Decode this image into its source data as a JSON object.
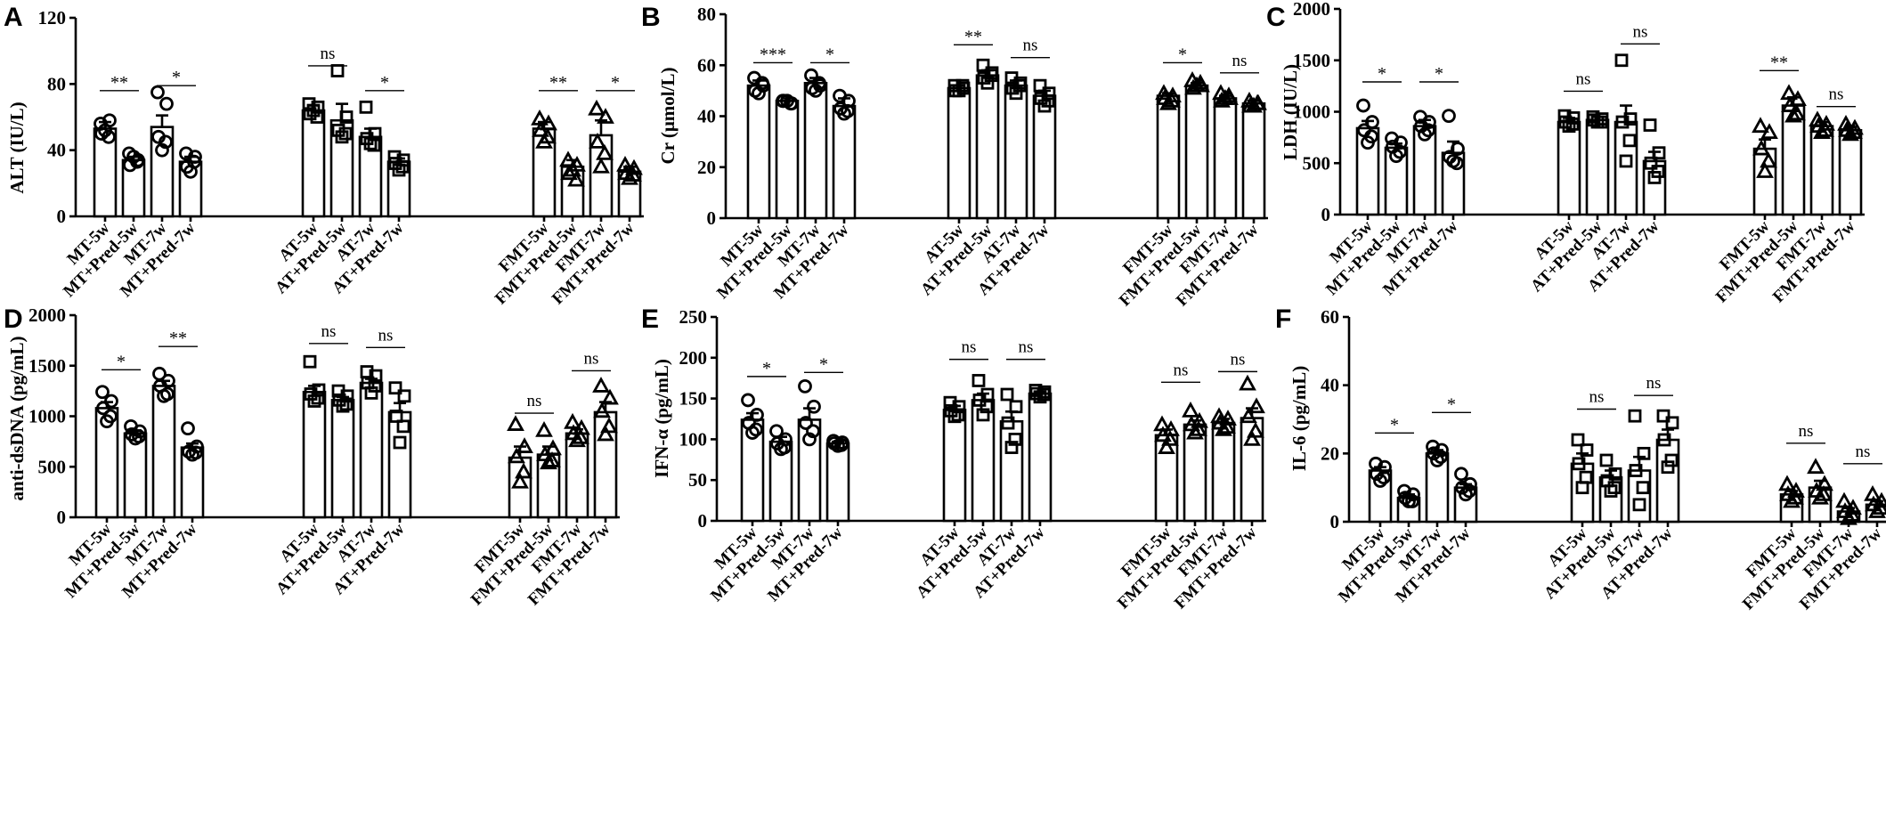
{
  "chart_data": [
    {
      "type": "bar",
      "panel": "A",
      "ylabel": "ALT (IU/L)",
      "ylim": [
        0,
        120
      ],
      "yticks": [
        "0",
        "40",
        "80",
        "120"
      ],
      "categories": [
        "MT-5w",
        "MT+Pred-5w",
        "MT-7w",
        "MT+Pred-7w",
        "AT-5w",
        "AT+Pred-5w",
        "AT-7w",
        "AT+Pred-7w",
        "FMT-5w",
        "FMT+Pred-5w",
        "FMT-7w",
        "FMT+Pred-7w"
      ],
      "groups": [
        4,
        4,
        4
      ],
      "markers": [
        "circle",
        "square",
        "triangle"
      ],
      "values": [
        53,
        34,
        54,
        33,
        64,
        58,
        48,
        33,
        53,
        30,
        49,
        27
      ],
      "errors": [
        4,
        2,
        7,
        3,
        3,
        10,
        5,
        2,
        4,
        4,
        9,
        3
      ],
      "points": [
        [
          56,
          58,
          50,
          48,
          52
        ],
        [
          38,
          34,
          31,
          33,
          36
        ],
        [
          75,
          68,
          48,
          45,
          40
        ],
        [
          38,
          36,
          30,
          33,
          27
        ],
        [
          68,
          66,
          62,
          60,
          64
        ],
        [
          88,
          60,
          52,
          50,
          48
        ],
        [
          66,
          50,
          47,
          43,
          44
        ],
        [
          36,
          34,
          32,
          30,
          28
        ],
        [
          59,
          56,
          52,
          48,
          45
        ],
        [
          34,
          31,
          26,
          22,
          28
        ],
        [
          65,
          60,
          45,
          38,
          30
        ],
        [
          31,
          29,
          26,
          25,
          23
        ]
      ],
      "significance": [
        {
          "from": 0,
          "to": 1,
          "label": "**",
          "y": 76
        },
        {
          "from": 2,
          "to": 3,
          "label": "*",
          "y": 79
        },
        {
          "from": 4,
          "to": 5,
          "label": "ns",
          "y": 91
        },
        {
          "from": 6,
          "to": 7,
          "label": "*",
          "y": 76
        },
        {
          "from": 8,
          "to": 9,
          "label": "**",
          "y": 76
        },
        {
          "from": 10,
          "to": 11,
          "label": "*",
          "y": 76
        }
      ]
    },
    {
      "type": "bar",
      "panel": "B",
      "ylabel": "Cr (μmol/L)",
      "ylim": [
        0,
        80
      ],
      "yticks": [
        "0",
        "20",
        "40",
        "60",
        "80"
      ],
      "categories": [
        "MT-5w",
        "MT+Pred-5w",
        "MT-7w",
        "MT+Pred-7w",
        "AT-5w",
        "AT+Pred-5w",
        "AT-7w",
        "AT+Pred-7w",
        "FMT-5w",
        "FMT+Pred-5w",
        "FMT-7w",
        "FMT+Pred-7w"
      ],
      "groups": [
        4,
        4,
        4
      ],
      "markers": [
        "circle",
        "square",
        "triangle"
      ],
      "values": [
        52,
        46,
        53,
        44,
        51,
        56,
        52,
        48,
        48,
        52,
        47,
        45
      ],
      "errors": [
        2,
        1,
        2,
        3,
        1,
        2,
        2,
        2,
        1,
        1,
        1,
        1
      ],
      "points": [
        [
          55,
          52,
          50,
          53,
          49
        ],
        [
          46,
          45,
          46,
          45,
          46
        ],
        [
          56,
          52,
          51,
          53,
          50
        ],
        [
          48,
          46,
          43,
          42,
          41
        ],
        [
          52,
          51,
          50,
          52,
          50
        ],
        [
          60,
          57,
          55,
          56,
          53
        ],
        [
          55,
          53,
          51,
          52,
          49
        ],
        [
          52,
          49,
          47,
          46,
          44
        ],
        [
          49,
          48,
          47,
          46,
          45
        ],
        [
          54,
          52,
          51,
          53,
          52
        ],
        [
          49,
          47,
          46,
          48,
          47
        ],
        [
          46,
          45,
          44,
          45,
          44
        ]
      ],
      "significance": [
        {
          "from": 0,
          "to": 1,
          "label": "***",
          "y": 61
        },
        {
          "from": 2,
          "to": 3,
          "label": "*",
          "y": 61
        },
        {
          "from": 4,
          "to": 5,
          "label": "**",
          "y": 68
        },
        {
          "from": 6,
          "to": 7,
          "label": "ns",
          "y": 63
        },
        {
          "from": 8,
          "to": 9,
          "label": "*",
          "y": 61
        },
        {
          "from": 10,
          "to": 11,
          "label": "ns",
          "y": 57
        }
      ]
    },
    {
      "type": "bar",
      "panel": "C",
      "ylabel": "LDH (IU/L)",
      "ylim": [
        0,
        2000
      ],
      "yticks": [
        "0",
        "500",
        "1000",
        "1500",
        "2000"
      ],
      "categories": [
        "MT-5w",
        "MT+Pred-5w",
        "MT-7w",
        "MT+Pred-7w",
        "AT-5w",
        "AT+Pred-5w",
        "AT-7w",
        "AT+Pred-7w",
        "FMT-5w",
        "FMT+Pred-5w",
        "FMT-7w",
        "FMT+Pred-7w"
      ],
      "groups": [
        4,
        4,
        4
      ],
      "markers": [
        "circle",
        "square",
        "triangle"
      ],
      "values": [
        840,
        650,
        860,
        600,
        900,
        920,
        900,
        520,
        640,
        1060,
        860,
        820
      ],
      "errors": [
        70,
        40,
        60,
        110,
        40,
        30,
        160,
        90,
        90,
        80,
        40,
        30
      ],
      "points": [
        [
          1060,
          900,
          820,
          760,
          700
        ],
        [
          740,
          700,
          660,
          610,
          570
        ],
        [
          950,
          900,
          860,
          820,
          780
        ],
        [
          960,
          640,
          560,
          500,
          520
        ],
        [
          960,
          940,
          900,
          880,
          860
        ],
        [
          950,
          930,
          920,
          900,
          900
        ],
        [
          1500,
          930,
          900,
          720,
          520
        ],
        [
          870,
          600,
          500,
          420,
          360
        ],
        [
          860,
          800,
          640,
          520,
          420
        ],
        [
          1180,
          1120,
          1060,
          980,
          960
        ],
        [
          920,
          880,
          860,
          820,
          800
        ],
        [
          880,
          840,
          820,
          800,
          780
        ]
      ],
      "significance": [
        {
          "from": 0,
          "to": 1,
          "label": "*",
          "y": 1290
        },
        {
          "from": 2,
          "to": 3,
          "label": "*",
          "y": 1290
        },
        {
          "from": 4,
          "to": 5,
          "label": "ns",
          "y": 1200
        },
        {
          "from": 6,
          "to": 7,
          "label": "ns",
          "y": 1660
        },
        {
          "from": 8,
          "to": 9,
          "label": "**",
          "y": 1400
        },
        {
          "from": 10,
          "to": 11,
          "label": "ns",
          "y": 1050
        }
      ]
    },
    {
      "type": "bar",
      "panel": "D",
      "ylabel": "anti-dsDNA  (pg/mL)",
      "ylim": [
        0,
        2000
      ],
      "yticks": [
        "0",
        "500",
        "1000",
        "1500",
        "2000"
      ],
      "categories": [
        "MT-5w",
        "MT+Pred-5w",
        "MT-7w",
        "MT+Pred-7w",
        "AT-5w",
        "AT+Pred-5w",
        "AT-7w",
        "AT+Pred-7w",
        "FMT-5w",
        "FMT+Pred-5w",
        "FMT-7w",
        "FMT+Pred-7w"
      ],
      "groups": [
        4,
        4,
        4
      ],
      "markers": [
        "circle",
        "square",
        "triangle"
      ],
      "values": [
        1080,
        830,
        1300,
        690,
        1240,
        1160,
        1330,
        1040,
        590,
        620,
        830,
        1040
      ],
      "errors": [
        60,
        30,
        50,
        40,
        60,
        30,
        40,
        90,
        110,
        80,
        40,
        100
      ],
      "points": [
        [
          1240,
          1150,
          1080,
          1000,
          950
        ],
        [
          900,
          850,
          820,
          800,
          780
        ],
        [
          1420,
          1350,
          1300,
          1220,
          1200
        ],
        [
          880,
          700,
          650,
          640,
          620
        ],
        [
          1540,
          1260,
          1220,
          1180,
          1150
        ],
        [
          1250,
          1200,
          1160,
          1120,
          1100
        ],
        [
          1440,
          1400,
          1330,
          1300,
          1230
        ],
        [
          1280,
          1200,
          1000,
          900,
          740
        ],
        [
          920,
          700,
          600,
          450,
          350
        ],
        [
          860,
          680,
          620,
          560,
          540
        ],
        [
          940,
          880,
          830,
          790,
          760
        ],
        [
          1300,
          1180,
          1050,
          900,
          820
        ]
      ],
      "significance": [
        {
          "from": 0,
          "to": 1,
          "label": "*",
          "y": 1460
        },
        {
          "from": 2,
          "to": 3,
          "label": "**",
          "y": 1690
        },
        {
          "from": 4,
          "to": 5,
          "label": "ns",
          "y": 1720
        },
        {
          "from": 6,
          "to": 7,
          "label": "ns",
          "y": 1680
        },
        {
          "from": 8,
          "to": 9,
          "label": "ns",
          "y": 1030
        },
        {
          "from": 10,
          "to": 11,
          "label": "ns",
          "y": 1450
        }
      ]
    },
    {
      "type": "bar",
      "panel": "E",
      "ylabel": "IFN-α  (pg/mL)",
      "ylim": [
        0,
        250
      ],
      "yticks": [
        "0",
        "50",
        "100",
        "150",
        "200",
        "250"
      ],
      "categories": [
        "MT-5w",
        "MT+Pred-5w",
        "MT-7w",
        "MT+Pred-7w",
        "AT-5w",
        "AT+Pred-5w",
        "AT-7w",
        "AT+Pred-7w",
        "FMT-5w",
        "FMT+Pred-5w",
        "FMT-7w",
        "FMT+Pred-7w"
      ],
      "groups": [
        4,
        4,
        4
      ],
      "markers": [
        "circle",
        "square",
        "triangle"
      ],
      "values": [
        124,
        97,
        124,
        95,
        136,
        148,
        122,
        156,
        105,
        118,
        120,
        126
      ],
      "errors": [
        8,
        6,
        14,
        2,
        5,
        8,
        12,
        2,
        7,
        5,
        5,
        12
      ],
      "points": [
        [
          148,
          130,
          120,
          112,
          108
        ],
        [
          110,
          100,
          95,
          90,
          88
        ],
        [
          165,
          140,
          120,
          110,
          100
        ],
        [
          98,
          96,
          95,
          93,
          92
        ],
        [
          145,
          140,
          135,
          130,
          128
        ],
        [
          172,
          155,
          148,
          140,
          130
        ],
        [
          155,
          140,
          120,
          100,
          90
        ],
        [
          160,
          158,
          156,
          155,
          152
        ],
        [
          118,
          112,
          105,
          100,
          90
        ],
        [
          135,
          122,
          118,
          112,
          108
        ],
        [
          128,
          125,
          120,
          115,
          112
        ],
        [
          168,
          140,
          128,
          110,
          100
        ]
      ],
      "significance": [
        {
          "from": 0,
          "to": 1,
          "label": "*",
          "y": 177
        },
        {
          "from": 2,
          "to": 3,
          "label": "*",
          "y": 182
        },
        {
          "from": 4,
          "to": 5,
          "label": "ns",
          "y": 198
        },
        {
          "from": 6,
          "to": 7,
          "label": "ns",
          "y": 198
        },
        {
          "from": 8,
          "to": 9,
          "label": "ns",
          "y": 170
        },
        {
          "from": 10,
          "to": 11,
          "label": "ns",
          "y": 183
        }
      ]
    },
    {
      "type": "bar",
      "panel": "F",
      "ylabel": "IL-6  (pg/mL)",
      "ylim": [
        0,
        60
      ],
      "yticks": [
        "0",
        "20",
        "40",
        "60"
      ],
      "categories": [
        "MT-5w",
        "MT+Pred-5w",
        "MT-7w",
        "MT+Pred-7w",
        "AT-5w",
        "AT+Pred-5w",
        "AT-7w",
        "AT+Pred-7w",
        "FMT-5w",
        "FMT+Pred-5w",
        "FMT-7w",
        "FMT+Pred-7w"
      ],
      "groups": [
        4,
        4,
        4
      ],
      "markers": [
        "circle",
        "square",
        "triangle"
      ],
      "values": [
        15,
        7,
        20,
        10,
        17,
        13,
        15,
        24,
        8,
        10,
        3,
        5
      ],
      "errors": [
        1,
        1,
        1,
        1,
        3,
        2,
        4,
        3,
        1,
        2,
        1,
        1
      ],
      "points": [
        [
          17,
          16,
          14,
          13,
          12
        ],
        [
          9,
          8,
          7,
          6,
          6
        ],
        [
          22,
          21,
          20,
          19,
          18
        ],
        [
          14,
          11,
          10,
          9,
          8
        ],
        [
          24,
          21,
          17,
          13,
          10
        ],
        [
          18,
          14,
          12,
          10,
          9
        ],
        [
          31,
          20,
          15,
          10,
          5
        ],
        [
          31,
          29,
          24,
          18,
          16
        ],
        [
          11,
          9,
          8,
          7,
          6
        ],
        [
          16,
          11,
          9,
          8,
          7
        ],
        [
          6,
          4,
          3,
          2,
          1
        ],
        [
          8,
          6,
          5,
          4,
          3
        ]
      ],
      "significance": [
        {
          "from": 0,
          "to": 1,
          "label": "*",
          "y": 26
        },
        {
          "from": 2,
          "to": 3,
          "label": "*",
          "y": 32
        },
        {
          "from": 4,
          "to": 5,
          "label": "ns",
          "y": 33
        },
        {
          "from": 6,
          "to": 7,
          "label": "ns",
          "y": 37
        },
        {
          "from": 8,
          "to": 9,
          "label": "ns",
          "y": 23
        },
        {
          "from": 10,
          "to": 11,
          "label": "ns",
          "y": 17
        }
      ]
    }
  ]
}
